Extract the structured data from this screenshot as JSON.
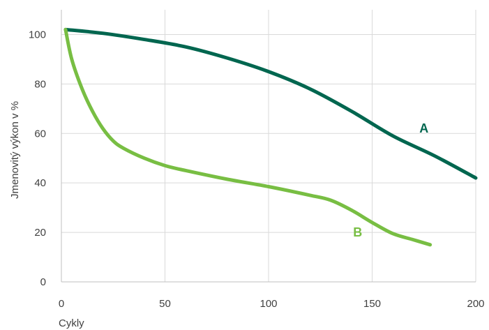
{
  "chart_data": {
    "type": "line",
    "xlabel": "Cykly",
    "ylabel": "Jmenovitý výkon v %",
    "xlim": [
      0,
      200
    ],
    "ylim": [
      0,
      110
    ],
    "xticks": [
      0,
      50,
      100,
      150,
      200
    ],
    "yticks": [
      0,
      20,
      40,
      60,
      80,
      100
    ],
    "grid": true,
    "series": [
      {
        "name": "A",
        "color": "#00664f",
        "x": [
          2,
          20,
          40,
          60,
          80,
          100,
          120,
          140,
          160,
          180,
          200
        ],
        "y": [
          102,
          100.5,
          98,
          95,
          90.5,
          85,
          78,
          69,
          59,
          51,
          42
        ]
      },
      {
        "name": "B",
        "color": "#78be43",
        "x": [
          2,
          5,
          10,
          15,
          20,
          25,
          30,
          40,
          50,
          60,
          80,
          100,
          120,
          130,
          140,
          150,
          160,
          170,
          178
        ],
        "y": [
          102,
          90,
          78,
          69,
          62,
          57,
          54,
          50,
          47,
          45,
          41.5,
          38.5,
          35,
          33,
          29,
          24,
          19.5,
          17,
          15
        ]
      }
    ]
  }
}
